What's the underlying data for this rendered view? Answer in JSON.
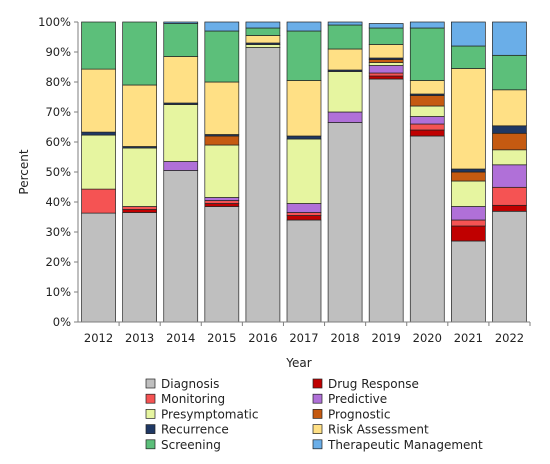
{
  "chart_data": {
    "type": "bar",
    "stacked": true,
    "xlabel": "Year",
    "ylabel": "Percent",
    "ylim": [
      0,
      100
    ],
    "y_ticks": [
      "0%",
      "10%",
      "20%",
      "30%",
      "40%",
      "50%",
      "60%",
      "70%",
      "80%",
      "90%",
      "100%"
    ],
    "grid": false,
    "legend_placement": "bottom",
    "categories": [
      "2012",
      "2013",
      "2014",
      "2015",
      "2016",
      "2017",
      "2018",
      "2019",
      "2020",
      "2021",
      "2022"
    ],
    "series": [
      {
        "name": "Diagnosis",
        "color": "#bfbfbf",
        "values": [
          36.3,
          36.5,
          50.5,
          38.5,
          91.5,
          34,
          66.5,
          81,
          62,
          27,
          36.9
        ]
      },
      {
        "name": "Drug Response",
        "color": "#c00000",
        "values": [
          0,
          1,
          0,
          1,
          0,
          1.5,
          0,
          1,
          2,
          5,
          2
        ]
      },
      {
        "name": "Monitoring",
        "color": "#f55353",
        "values": [
          8,
          1,
          0,
          1,
          0,
          1,
          0,
          1,
          2,
          2,
          6
        ]
      },
      {
        "name": "Predictive",
        "color": "#b070d8",
        "values": [
          0,
          0,
          3,
          1,
          0,
          3,
          3.5,
          2.5,
          2.5,
          4.5,
          7.5
        ]
      },
      {
        "name": "Presymptomatic",
        "color": "#e6f5a0",
        "values": [
          18,
          19.5,
          19,
          17.5,
          1,
          21.5,
          13.5,
          1,
          3.5,
          8.5,
          5
        ]
      },
      {
        "name": "Prognostic",
        "color": "#c55a11",
        "values": [
          0,
          0,
          0,
          3,
          0,
          0,
          0,
          1,
          3.5,
          3,
          5.5
        ]
      },
      {
        "name": "Recurrence",
        "color": "#1f3864",
        "values": [
          1,
          0.5,
          0.5,
          0.5,
          0.5,
          1,
          0.5,
          0.5,
          0.5,
          1,
          2.5
        ]
      },
      {
        "name": "Risk Assessment",
        "color": "#ffe085",
        "values": [
          21,
          20.5,
          15.5,
          17.5,
          2.5,
          18.5,
          7,
          4.5,
          4.5,
          33.5,
          12
        ]
      },
      {
        "name": "Screening",
        "color": "#5cbf7a",
        "values": [
          15.7,
          21,
          11,
          17,
          2.5,
          16.5,
          8,
          5.5,
          17.5,
          7.5,
          11.5
        ]
      },
      {
        "name": "Therapeutic Management",
        "color": "#6aaee8",
        "values": [
          0,
          0,
          0.5,
          3,
          2,
          3,
          1,
          1.5,
          2,
          8,
          11.1
        ]
      }
    ]
  }
}
